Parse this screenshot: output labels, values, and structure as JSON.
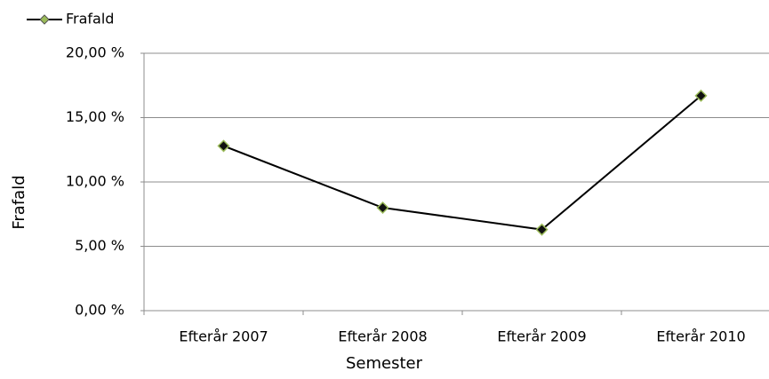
{
  "chart_data": {
    "type": "line",
    "x_label": "Semester",
    "y_label": "Frafald",
    "categories": [
      "Efterår 2007",
      "Efterår 2008",
      "Efterår 2009",
      "Efterår 2010"
    ],
    "series": [
      {
        "name": "Frafald",
        "color": "#000000",
        "marker_color": "#9bbb59",
        "values": [
          12.8,
          8.0,
          6.3,
          16.7
        ]
      }
    ],
    "ylim": [
      0,
      20
    ],
    "yticks": [
      {
        "value": 0,
        "label": "0,00 %"
      },
      {
        "value": 5,
        "label": "5,00 %"
      },
      {
        "value": 10,
        "label": "10,00 %"
      },
      {
        "value": 15,
        "label": "15,00 %"
      },
      {
        "value": 20,
        "label": "20,00 %"
      }
    ],
    "grid": true,
    "legend": "top-left"
  }
}
